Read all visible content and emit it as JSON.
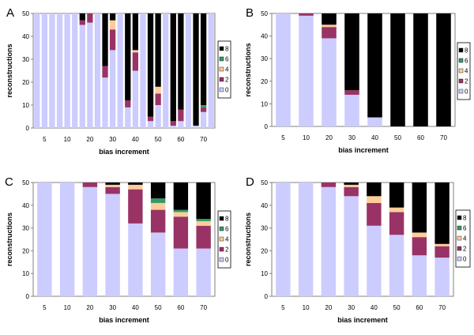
{
  "chart_data": [
    {
      "panel": "A",
      "type": "bar",
      "stacked": true,
      "xlabel": "bias increment",
      "ylabel": "reconstructions",
      "ylim": [
        0,
        50
      ],
      "yticks": [
        0,
        10,
        20,
        30,
        40,
        50
      ],
      "groups": [
        "5",
        "10",
        "20",
        "30",
        "40",
        "50",
        "60",
        "70"
      ],
      "bars_per_group": 3,
      "legend": [
        "8",
        "6",
        "4",
        "2",
        "0"
      ],
      "series": [
        {
          "name": "0",
          "color": "#CCCCFF",
          "values": [
            50,
            50,
            50,
            50,
            50,
            50,
            45,
            46,
            50,
            22,
            34,
            50,
            9,
            25,
            50,
            3,
            10,
            50,
            1,
            3,
            50,
            1,
            7,
            50
          ]
        },
        {
          "name": "2",
          "color": "#993366",
          "values": [
            0,
            0,
            0,
            0,
            0,
            0,
            2,
            4,
            0,
            5,
            9,
            0,
            3,
            8,
            0,
            2,
            5,
            0,
            2,
            5,
            0,
            0,
            2,
            0
          ]
        },
        {
          "name": "4",
          "color": "#FFCC99",
          "values": [
            0,
            0,
            0,
            0,
            0,
            0,
            0,
            0,
            0,
            0,
            4,
            0,
            0,
            1,
            0,
            0,
            3,
            0,
            0,
            0,
            0,
            0,
            0,
            0
          ]
        },
        {
          "name": "6",
          "color": "#339966",
          "values": [
            0,
            0,
            0,
            0,
            0,
            0,
            0,
            0,
            0,
            0,
            0,
            0,
            0,
            0,
            0,
            0,
            0,
            0,
            0,
            0,
            0,
            0,
            1,
            0
          ]
        },
        {
          "name": "8",
          "color": "#000000",
          "values": [
            0,
            0,
            0,
            0,
            0,
            0,
            3,
            0,
            0,
            23,
            3,
            0,
            38,
            16,
            0,
            45,
            32,
            0,
            47,
            42,
            0,
            49,
            40,
            0
          ]
        }
      ]
    },
    {
      "panel": "B",
      "type": "bar",
      "stacked": true,
      "xlabel": "bias increment",
      "ylabel": "reconstructions",
      "ylim": [
        0,
        50
      ],
      "yticks": [
        0,
        10,
        20,
        30,
        40,
        50
      ],
      "groups": [
        "5",
        "10",
        "20",
        "30",
        "40",
        "50",
        "60",
        "70"
      ],
      "bars_per_group": 1,
      "legend": [
        "8",
        "6",
        "4",
        "2",
        "0"
      ],
      "series": [
        {
          "name": "0",
          "color": "#CCCCFF",
          "values": [
            50,
            49,
            39,
            14,
            4,
            0,
            0,
            0
          ]
        },
        {
          "name": "2",
          "color": "#993366",
          "values": [
            0,
            1,
            5,
            2,
            0,
            0,
            0,
            0
          ]
        },
        {
          "name": "4",
          "color": "#FFCC99",
          "values": [
            0,
            0,
            1,
            0,
            0,
            0,
            0,
            0
          ]
        },
        {
          "name": "6",
          "color": "#339966",
          "values": [
            0,
            0,
            0,
            0,
            0,
            0,
            0,
            0
          ]
        },
        {
          "name": "8",
          "color": "#000000",
          "values": [
            0,
            0,
            5,
            34,
            46,
            50,
            50,
            50
          ]
        }
      ]
    },
    {
      "panel": "C",
      "type": "bar",
      "stacked": true,
      "xlabel": "bias increment",
      "ylabel": "reconstructions",
      "ylim": [
        0,
        50
      ],
      "yticks": [
        0,
        10,
        20,
        30,
        40,
        50
      ],
      "groups": [
        "5",
        "10",
        "20",
        "30",
        "40",
        "50",
        "60",
        "70"
      ],
      "bars_per_group": 1,
      "legend": [
        "8",
        "6",
        "4",
        "2",
        "0"
      ],
      "series": [
        {
          "name": "0",
          "color": "#CCCCFF",
          "values": [
            50,
            50,
            48,
            45,
            32,
            28,
            21,
            21
          ]
        },
        {
          "name": "2",
          "color": "#993366",
          "values": [
            0,
            0,
            2,
            3,
            15,
            10,
            14,
            10
          ]
        },
        {
          "name": "4",
          "color": "#FFCC99",
          "values": [
            0,
            0,
            0,
            1,
            2,
            3,
            2,
            2
          ]
        },
        {
          "name": "6",
          "color": "#339966",
          "values": [
            0,
            0,
            0,
            0,
            0,
            2,
            1,
            1
          ]
        },
        {
          "name": "8",
          "color": "#000000",
          "values": [
            0,
            0,
            0,
            1,
            1,
            7,
            12,
            16
          ]
        }
      ]
    },
    {
      "panel": "D",
      "type": "bar",
      "stacked": true,
      "xlabel": "bias increment",
      "ylabel": "reconstructions",
      "ylim": [
        0,
        50
      ],
      "yticks": [
        0,
        10,
        20,
        30,
        40,
        50
      ],
      "groups": [
        "5",
        "10",
        "20",
        "30",
        "40",
        "50",
        "60",
        "70"
      ],
      "bars_per_group": 1,
      "legend": [
        "8",
        "6",
        "4",
        "2",
        "0"
      ],
      "series": [
        {
          "name": "0",
          "color": "#CCCCFF",
          "values": [
            50,
            50,
            48,
            44,
            31,
            27,
            18,
            17
          ]
        },
        {
          "name": "2",
          "color": "#993366",
          "values": [
            0,
            0,
            2,
            4,
            10,
            10,
            8,
            5
          ]
        },
        {
          "name": "4",
          "color": "#FFCC99",
          "values": [
            0,
            0,
            0,
            1,
            3,
            2,
            2,
            1
          ]
        },
        {
          "name": "6",
          "color": "#339966",
          "values": [
            0,
            0,
            0,
            0,
            0,
            0,
            0,
            0
          ]
        },
        {
          "name": "8",
          "color": "#000000",
          "values": [
            0,
            0,
            0,
            1,
            6,
            11,
            22,
            27
          ]
        }
      ]
    }
  ]
}
